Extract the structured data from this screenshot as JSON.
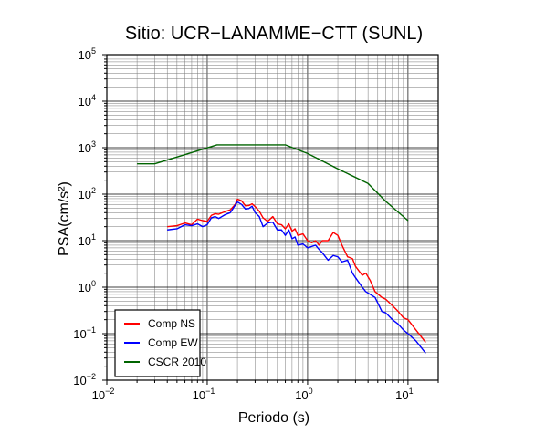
{
  "chart_data": {
    "type": "line",
    "title": "Sitio: UCR−LANAMME−CTT (SUNL)",
    "xlabel": "Periodo (s)",
    "ylabel": "PSA(cm/s²)",
    "xscale": "log",
    "yscale": "log",
    "xlim": [
      0.01,
      20
    ],
    "ylim": [
      0.01,
      100000
    ],
    "grid": true,
    "legend_position": "bottom-left",
    "x_ticks": [
      {
        "value": 0.01,
        "base": "10",
        "exp": "−2"
      },
      {
        "value": 0.1,
        "base": "10",
        "exp": "−1"
      },
      {
        "value": 1,
        "base": "10",
        "exp": "0"
      },
      {
        "value": 10,
        "base": "10",
        "exp": "1"
      }
    ],
    "y_ticks": [
      {
        "value": 0.01,
        "base": "10",
        "exp": "−2"
      },
      {
        "value": 0.1,
        "base": "10",
        "exp": "−1"
      },
      {
        "value": 1,
        "base": "10",
        "exp": "0"
      },
      {
        "value": 10,
        "base": "10",
        "exp": "1"
      },
      {
        "value": 100,
        "base": "10",
        "exp": "2"
      },
      {
        "value": 1000,
        "base": "10",
        "exp": "3"
      },
      {
        "value": 10000,
        "base": "10",
        "exp": "4"
      },
      {
        "value": 100000,
        "base": "10",
        "exp": "5"
      }
    ],
    "series": [
      {
        "name": "Comp NS",
        "color": "#ff0000",
        "points": [
          [
            0.04,
            20
          ],
          [
            0.05,
            21
          ],
          [
            0.06,
            24
          ],
          [
            0.07,
            22
          ],
          [
            0.08,
            29
          ],
          [
            0.09,
            27
          ],
          [
            0.1,
            26
          ],
          [
            0.11,
            35
          ],
          [
            0.12,
            38
          ],
          [
            0.13,
            37
          ],
          [
            0.15,
            42
          ],
          [
            0.17,
            46
          ],
          [
            0.19,
            60
          ],
          [
            0.2,
            78
          ],
          [
            0.22,
            72
          ],
          [
            0.24,
            56
          ],
          [
            0.26,
            57
          ],
          [
            0.28,
            62
          ],
          [
            0.3,
            54
          ],
          [
            0.33,
            43
          ],
          [
            0.36,
            31
          ],
          [
            0.4,
            26
          ],
          [
            0.45,
            33
          ],
          [
            0.5,
            23
          ],
          [
            0.55,
            22
          ],
          [
            0.6,
            18
          ],
          [
            0.65,
            23
          ],
          [
            0.7,
            16
          ],
          [
            0.75,
            18
          ],
          [
            0.8,
            13
          ],
          [
            0.9,
            14
          ],
          [
            1.0,
            10
          ],
          [
            1.1,
            9
          ],
          [
            1.2,
            10
          ],
          [
            1.3,
            8
          ],
          [
            1.4,
            10
          ],
          [
            1.6,
            10
          ],
          [
            1.8,
            15
          ],
          [
            2.0,
            13
          ],
          [
            2.2,
            8
          ],
          [
            2.5,
            4.5
          ],
          [
            2.8,
            4.1
          ],
          [
            3.0,
            2.8
          ],
          [
            3.5,
            1.8
          ],
          [
            3.8,
            2.0
          ],
          [
            4.2,
            1.4
          ],
          [
            4.7,
            0.8
          ],
          [
            5.5,
            0.6
          ],
          [
            6.0,
            0.55
          ],
          [
            7.0,
            0.4
          ],
          [
            8.0,
            0.3
          ],
          [
            9.0,
            0.22
          ],
          [
            10.0,
            0.2
          ],
          [
            12.0,
            0.12
          ],
          [
            15.0,
            0.065
          ]
        ]
      },
      {
        "name": "Comp EW",
        "color": "#0000ff",
        "points": [
          [
            0.04,
            17
          ],
          [
            0.05,
            18
          ],
          [
            0.06,
            22
          ],
          [
            0.07,
            21
          ],
          [
            0.08,
            23
          ],
          [
            0.09,
            20
          ],
          [
            0.1,
            22
          ],
          [
            0.11,
            31
          ],
          [
            0.12,
            33
          ],
          [
            0.13,
            30
          ],
          [
            0.15,
            36
          ],
          [
            0.17,
            40
          ],
          [
            0.19,
            58
          ],
          [
            0.2,
            68
          ],
          [
            0.22,
            60
          ],
          [
            0.24,
            48
          ],
          [
            0.26,
            49
          ],
          [
            0.28,
            55
          ],
          [
            0.3,
            40
          ],
          [
            0.33,
            33
          ],
          [
            0.36,
            20
          ],
          [
            0.4,
            24
          ],
          [
            0.45,
            25
          ],
          [
            0.5,
            17
          ],
          [
            0.55,
            17
          ],
          [
            0.6,
            13
          ],
          [
            0.65,
            17
          ],
          [
            0.7,
            11
          ],
          [
            0.75,
            12
          ],
          [
            0.8,
            8
          ],
          [
            0.9,
            8.5
          ],
          [
            1.0,
            7
          ],
          [
            1.1,
            7.5
          ],
          [
            1.2,
            8
          ],
          [
            1.3,
            6.5
          ],
          [
            1.4,
            5.5
          ],
          [
            1.6,
            3.8
          ],
          [
            1.8,
            4.8
          ],
          [
            2.0,
            4.5
          ],
          [
            2.2,
            3.5
          ],
          [
            2.5,
            3.8
          ],
          [
            2.8,
            2.0
          ],
          [
            3.0,
            1.6
          ],
          [
            3.5,
            1.0
          ],
          [
            3.8,
            0.8
          ],
          [
            4.2,
            0.7
          ],
          [
            4.7,
            0.6
          ],
          [
            5.5,
            0.3
          ],
          [
            6.0,
            0.28
          ],
          [
            7.0,
            0.2
          ],
          [
            8.0,
            0.16
          ],
          [
            9.0,
            0.12
          ],
          [
            10.0,
            0.1
          ],
          [
            12.0,
            0.07
          ],
          [
            15.0,
            0.038
          ]
        ]
      },
      {
        "name": "CSCR 2010",
        "color": "#006400",
        "points": [
          [
            0.02,
            450
          ],
          [
            0.03,
            450
          ],
          [
            0.125,
            1150
          ],
          [
            0.6,
            1150
          ],
          [
            1.0,
            750
          ],
          [
            2.0,
            350
          ],
          [
            4.0,
            170
          ],
          [
            6.0,
            70
          ],
          [
            10.0,
            27
          ]
        ]
      }
    ]
  }
}
